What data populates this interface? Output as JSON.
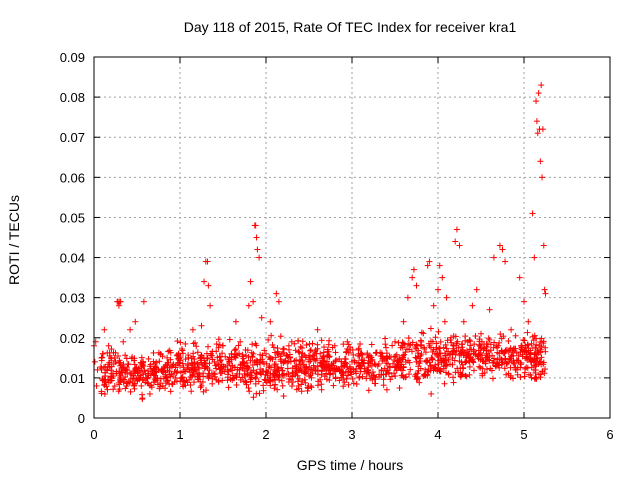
{
  "chart_data": {
    "type": "scatter",
    "title": "Day 118 of 2015, Rate Of TEC Index for receiver kra1",
    "xlabel": "GPS time / hours",
    "ylabel": "ROTI / TECUs",
    "xlim": [
      0,
      6
    ],
    "ylim": [
      0,
      0.09
    ],
    "xticks": [
      0,
      1,
      2,
      3,
      4,
      5,
      6
    ],
    "yticks": [
      0,
      0.01,
      0.02,
      0.03,
      0.04,
      0.05,
      0.06,
      0.07,
      0.08,
      0.09
    ],
    "xtick_labels": [
      "0",
      "1",
      "2",
      "3",
      "4",
      "5",
      "6"
    ],
    "ytick_labels": [
      "0",
      "0.01",
      "0.02",
      "0.03",
      "0.04",
      "0.05",
      "0.06",
      "0.07",
      "0.08",
      "0.09"
    ],
    "grid": true,
    "marker": "plus",
    "color": "#ff0000",
    "x_range_observed": [
      0.0,
      5.25
    ],
    "series": [
      {
        "name": "ROTI",
        "points": [
          [
            0.0,
            0.018
          ],
          [
            0.01,
            0.014
          ],
          [
            0.02,
            0.019
          ],
          [
            0.03,
            0.008
          ],
          [
            0.04,
            0.012
          ],
          [
            0.1,
            0.016
          ],
          [
            0.12,
            0.022
          ],
          [
            0.13,
            0.009
          ],
          [
            0.15,
            0.012
          ],
          [
            0.17,
            0.018
          ],
          [
            0.2,
            0.015
          ],
          [
            0.22,
            0.011
          ],
          [
            0.25,
            0.014
          ],
          [
            0.27,
            0.029
          ],
          [
            0.28,
            0.029
          ],
          [
            0.29,
            0.028
          ],
          [
            0.3,
            0.029
          ],
          [
            0.31,
            0.029
          ],
          [
            0.32,
            0.012
          ],
          [
            0.34,
            0.019
          ],
          [
            0.38,
            0.012
          ],
          [
            0.42,
            0.022
          ],
          [
            0.45,
            0.009
          ],
          [
            0.48,
            0.024
          ],
          [
            0.5,
            0.012
          ],
          [
            0.55,
            0.008
          ],
          [
            0.58,
            0.029
          ],
          [
            0.6,
            0.011
          ],
          [
            0.65,
            0.006
          ],
          [
            0.7,
            0.009
          ],
          [
            0.75,
            0.012
          ],
          [
            0.8,
            0.008
          ],
          [
            0.85,
            0.015
          ],
          [
            0.9,
            0.011
          ],
          [
            0.95,
            0.01
          ],
          [
            1.0,
            0.013
          ],
          [
            1.05,
            0.009
          ],
          [
            1.1,
            0.015
          ],
          [
            1.15,
            0.022
          ],
          [
            1.2,
            0.011
          ],
          [
            1.25,
            0.023
          ],
          [
            1.28,
            0.034
          ],
          [
            1.3,
            0.039
          ],
          [
            1.32,
            0.039
          ],
          [
            1.33,
            0.033
          ],
          [
            1.35,
            0.028
          ],
          [
            1.4,
            0.014
          ],
          [
            1.45,
            0.009
          ],
          [
            1.5,
            0.018
          ],
          [
            1.55,
            0.012
          ],
          [
            1.6,
            0.016
          ],
          [
            1.65,
            0.024
          ],
          [
            1.7,
            0.019
          ],
          [
            1.75,
            0.011
          ],
          [
            1.8,
            0.028
          ],
          [
            1.82,
            0.034
          ],
          [
            1.85,
            0.029
          ],
          [
            1.87,
            0.048
          ],
          [
            1.88,
            0.048
          ],
          [
            1.89,
            0.045
          ],
          [
            1.9,
            0.042
          ],
          [
            1.92,
            0.04
          ],
          [
            1.95,
            0.025
          ],
          [
            2.0,
            0.016
          ],
          [
            2.05,
            0.024
          ],
          [
            2.1,
            0.013
          ],
          [
            2.12,
            0.031
          ],
          [
            2.15,
            0.029
          ],
          [
            2.2,
            0.014
          ],
          [
            2.3,
            0.019
          ],
          [
            2.4,
            0.012
          ],
          [
            2.5,
            0.014
          ],
          [
            2.6,
            0.022
          ],
          [
            2.7,
            0.012
          ],
          [
            2.8,
            0.018
          ],
          [
            2.9,
            0.011
          ],
          [
            3.0,
            0.014
          ],
          [
            3.1,
            0.016
          ],
          [
            3.2,
            0.011
          ],
          [
            3.3,
            0.013
          ],
          [
            3.4,
            0.015
          ],
          [
            3.5,
            0.019
          ],
          [
            3.6,
            0.024
          ],
          [
            3.65,
            0.03
          ],
          [
            3.7,
            0.035
          ],
          [
            3.72,
            0.037
          ],
          [
            3.75,
            0.033
          ],
          [
            3.8,
            0.018
          ],
          [
            3.85,
            0.012
          ],
          [
            3.88,
            0.038
          ],
          [
            3.9,
            0.039
          ],
          [
            3.92,
            0.006
          ],
          [
            3.95,
            0.028
          ],
          [
            4.0,
            0.032
          ],
          [
            4.02,
            0.038
          ],
          [
            4.05,
            0.035
          ],
          [
            4.08,
            0.024
          ],
          [
            4.1,
            0.03
          ],
          [
            4.15,
            0.02
          ],
          [
            4.2,
            0.044
          ],
          [
            4.22,
            0.047
          ],
          [
            4.25,
            0.043
          ],
          [
            4.3,
            0.024
          ],
          [
            4.35,
            0.016
          ],
          [
            4.4,
            0.028
          ],
          [
            4.45,
            0.032
          ],
          [
            4.5,
            0.021
          ],
          [
            4.55,
            0.014
          ],
          [
            4.6,
            0.027
          ],
          [
            4.65,
            0.04
          ],
          [
            4.7,
            0.018
          ],
          [
            4.72,
            0.043
          ],
          [
            4.75,
            0.042
          ],
          [
            4.78,
            0.039
          ],
          [
            4.8,
            0.017
          ],
          [
            4.85,
            0.022
          ],
          [
            4.9,
            0.012
          ],
          [
            4.95,
            0.035
          ],
          [
            5.0,
            0.029
          ],
          [
            5.05,
            0.024
          ],
          [
            5.08,
            0.014
          ],
          [
            5.1,
            0.051
          ],
          [
            5.12,
            0.04
          ],
          [
            5.14,
            0.079
          ],
          [
            5.15,
            0.074
          ],
          [
            5.16,
            0.071
          ],
          [
            5.17,
            0.081
          ],
          [
            5.18,
            0.072
          ],
          [
            5.19,
            0.064
          ],
          [
            5.2,
            0.083
          ],
          [
            5.21,
            0.06
          ],
          [
            5.22,
            0.072
          ],
          [
            5.23,
            0.043
          ],
          [
            5.24,
            0.032
          ],
          [
            5.25,
            0.031
          ]
        ],
        "dense_band": {
          "description": "dense cloud of points between x=0.1 and x=5.25",
          "baseline_by_hour": [
            [
              0.0,
              0.012
            ],
            [
              0.5,
              0.011
            ],
            [
              1.0,
              0.012
            ],
            [
              1.5,
              0.013
            ],
            [
              2.0,
              0.013
            ],
            [
              2.5,
              0.013
            ],
            [
              3.0,
              0.013
            ],
            [
              3.5,
              0.014
            ],
            [
              4.0,
              0.015
            ],
            [
              4.5,
              0.016
            ],
            [
              5.0,
              0.015
            ]
          ],
          "spread": 0.006
        }
      }
    ]
  }
}
